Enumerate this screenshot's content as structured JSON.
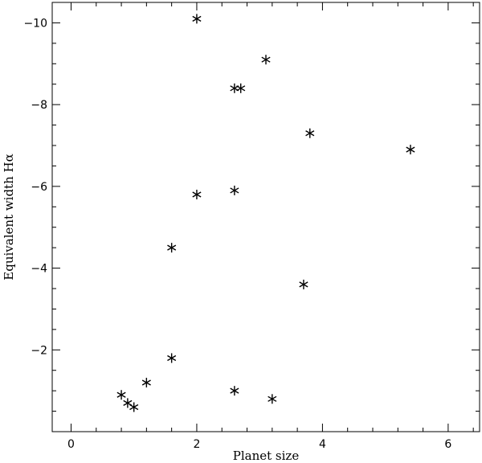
{
  "chart_data": {
    "type": "scatter",
    "title": "",
    "xlabel": "Planet size",
    "ylabel": "Equivalent width Hα",
    "xlim": [
      -0.3,
      6.5
    ],
    "ylim": [
      0,
      -10.5
    ],
    "y_axis_inverted": true,
    "grid": false,
    "legend": "none",
    "marker": "asterisk",
    "x_major_ticks": [
      0,
      2,
      4,
      6
    ],
    "x_tick_labels": [
      "0",
      "2",
      "4",
      "6"
    ],
    "x_minor_step": 0.4,
    "y_major_ticks": [
      -2,
      -4,
      -6,
      -8,
      -10
    ],
    "y_tick_labels": [
      "−2",
      "−4",
      "−6",
      "−8",
      "−10"
    ],
    "y_minor_step": 0.5,
    "points": [
      {
        "x": 2.0,
        "y": -10.1
      },
      {
        "x": 3.1,
        "y": -9.1
      },
      {
        "x": 2.6,
        "y": -8.4
      },
      {
        "x": 2.7,
        "y": -8.4
      },
      {
        "x": 3.8,
        "y": -7.3
      },
      {
        "x": 5.4,
        "y": -6.9
      },
      {
        "x": 2.6,
        "y": -5.9
      },
      {
        "x": 2.0,
        "y": -5.8
      },
      {
        "x": 1.6,
        "y": -4.5
      },
      {
        "x": 3.7,
        "y": -3.6
      },
      {
        "x": 1.6,
        "y": -1.8
      },
      {
        "x": 1.2,
        "y": -1.2
      },
      {
        "x": 2.6,
        "y": -1.0
      },
      {
        "x": 0.8,
        "y": -0.9
      },
      {
        "x": 3.2,
        "y": -0.8
      },
      {
        "x": 0.9,
        "y": -0.7
      },
      {
        "x": 1.0,
        "y": -0.6
      }
    ]
  }
}
